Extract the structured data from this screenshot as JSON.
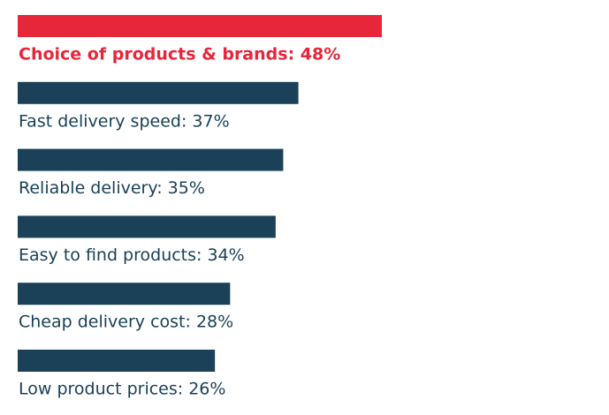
{
  "chart_data": {
    "type": "bar",
    "categories": [
      "Choice of products & brands: 48%",
      "Fast delivery speed: 37%",
      "Reliable delivery: 35%",
      "Easy to find products: 34%",
      "Cheap delivery cost: 28%",
      "Low product prices: 26%"
    ],
    "values": [
      48,
      37,
      35,
      34,
      28,
      26
    ],
    "colors": [
      "#e8263a",
      "#1a4157",
      "#1a4157",
      "#1a4157",
      "#1a4157",
      "#1a4157"
    ]
  }
}
